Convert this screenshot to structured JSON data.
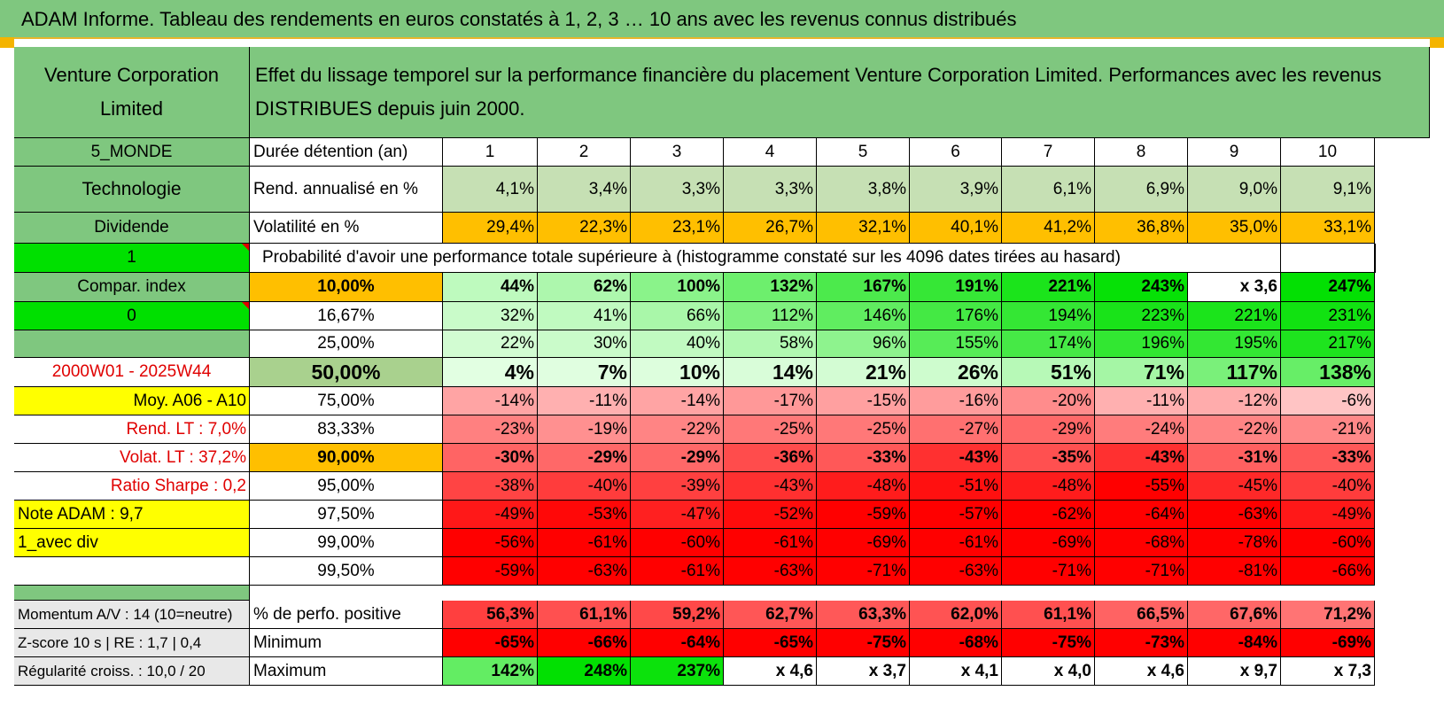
{
  "title": "ADAM Informe. Tableau des rendements en euros constatés à 1, 2, 3 … 10 ans avec les revenus connus distribués",
  "header": {
    "name_line1": "Venture Corporation",
    "name_line2": "Limited",
    "description_line1": "Effet du lissage temporel sur la performance financière du placement Venture Corporation Limited. Performances avec les revenus",
    "description_line2": "DISTRIBUES depuis juin 2000."
  },
  "side": [
    "5_MONDE",
    "Technologie",
    "Dividende",
    "1",
    "Compar. index",
    "0",
    "",
    "2000W01 - 2025W44",
    "Moy. A06 - A10",
    "Rend. LT :   7,0%",
    "Volat. LT :   37,2%",
    "Ratio Sharpe :    0,2",
    "Note ADAM : 9,7",
    "1_avec div",
    ""
  ],
  "labels": {
    "duree": "Durée détention (an)",
    "rend": "Rend. annualisé en %",
    "vol": "Volatilité en %",
    "prob": "Probabilité d'avoir une performance totale supérieure à (histogramme constaté sur les 4096 dates tirées au hasard)"
  },
  "years": [
    "1",
    "2",
    "3",
    "4",
    "5",
    "6",
    "7",
    "8",
    "9",
    "10"
  ],
  "rend": [
    "4,1%",
    "3,4%",
    "3,3%",
    "3,3%",
    "3,8%",
    "3,9%",
    "6,1%",
    "6,9%",
    "9,0%",
    "9,1%"
  ],
  "vol": [
    "29,4%",
    "22,3%",
    "23,1%",
    "26,7%",
    "32,1%",
    "40,1%",
    "41,2%",
    "36,8%",
    "35,0%",
    "33,1%"
  ],
  "percentiles": [
    {
      "p": "10,00%",
      "values": [
        "44%",
        "62%",
        "100%",
        "132%",
        "167%",
        "191%",
        "221%",
        "243%",
        "x 3,6",
        "247%"
      ]
    },
    {
      "p": "16,67%",
      "values": [
        "32%",
        "41%",
        "66%",
        "112%",
        "146%",
        "176%",
        "194%",
        "223%",
        "221%",
        "231%"
      ]
    },
    {
      "p": "25,00%",
      "values": [
        "22%",
        "30%",
        "40%",
        "58%",
        "96%",
        "155%",
        "174%",
        "196%",
        "195%",
        "217%"
      ]
    },
    {
      "p": "50,00%",
      "values": [
        "4%",
        "7%",
        "10%",
        "14%",
        "21%",
        "26%",
        "51%",
        "71%",
        "117%",
        "138%"
      ]
    },
    {
      "p": "75,00%",
      "values": [
        "-14%",
        "-11%",
        "-14%",
        "-17%",
        "-15%",
        "-16%",
        "-20%",
        "-11%",
        "-12%",
        "-6%"
      ]
    },
    {
      "p": "83,33%",
      "values": [
        "-23%",
        "-19%",
        "-22%",
        "-25%",
        "-25%",
        "-27%",
        "-29%",
        "-24%",
        "-22%",
        "-21%"
      ]
    },
    {
      "p": "90,00%",
      "values": [
        "-30%",
        "-29%",
        "-29%",
        "-36%",
        "-33%",
        "-43%",
        "-35%",
        "-43%",
        "-31%",
        "-33%"
      ]
    },
    {
      "p": "95,00%",
      "values": [
        "-38%",
        "-40%",
        "-39%",
        "-43%",
        "-48%",
        "-51%",
        "-48%",
        "-55%",
        "-45%",
        "-40%"
      ]
    },
    {
      "p": "97,50%",
      "values": [
        "-49%",
        "-53%",
        "-47%",
        "-52%",
        "-59%",
        "-57%",
        "-62%",
        "-64%",
        "-63%",
        "-49%"
      ]
    },
    {
      "p": "99,00%",
      "values": [
        "-56%",
        "-61%",
        "-60%",
        "-61%",
        "-69%",
        "-61%",
        "-69%",
        "-68%",
        "-78%",
        "-60%"
      ]
    },
    {
      "p": "99,50%",
      "values": [
        "-59%",
        "-63%",
        "-61%",
        "-63%",
        "-71%",
        "-63%",
        "-71%",
        "-71%",
        "-81%",
        "-66%"
      ]
    }
  ],
  "bottom": [
    {
      "left": "Momentum A/V : 14 (10=neutre)",
      "label": "% de perfo. positive",
      "values": [
        "56,3%",
        "61,1%",
        "59,2%",
        "62,7%",
        "63,3%",
        "62,0%",
        "61,1%",
        "66,5%",
        "67,6%",
        "71,2%"
      ]
    },
    {
      "left": "Z-score 10 s | RE : 1,7 | 0,4",
      "label": "Minimum",
      "values": [
        "-65%",
        "-66%",
        "-64%",
        "-65%",
        "-75%",
        "-68%",
        "-75%",
        "-73%",
        "-84%",
        "-69%"
      ]
    },
    {
      "left": "Régularité croiss. : 10,0 / 20",
      "label": "Maximum",
      "values": [
        "142%",
        "248%",
        "237%",
        "x 4,6",
        "x 3,7",
        "x 4,1",
        "x 4,0",
        "x 4,6",
        "x 9,7",
        "x 7,3"
      ]
    }
  ],
  "colors": {
    "header_green": "#7fc77f",
    "bright_green": "#00e000",
    "yellow": "#ffff00",
    "orange": "#ffbf00",
    "red": "#ff0000",
    "light_green": "#c6e0b4"
  }
}
